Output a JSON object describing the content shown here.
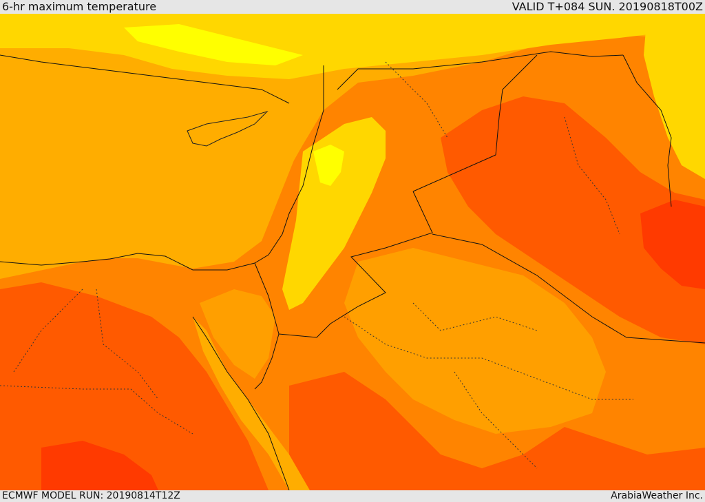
{
  "header": {
    "title": "6-hr maximum temperature",
    "valid": "VALID T+084 SUN. 20190818T00Z"
  },
  "footer": {
    "model_run": "ECMWF MODEL RUN: 20190814T12Z",
    "credit": "ArabiaWeather Inc."
  },
  "map": {
    "layer": "temperature-fill",
    "colors": {
      "sea": "#ffad00",
      "cool": "#ffd700",
      "coolest": "#ffff00",
      "mild": "#ff9f00",
      "warm": "#ff8400",
      "hot": "#ff5a00",
      "hottest": "#ff3a00"
    }
  }
}
